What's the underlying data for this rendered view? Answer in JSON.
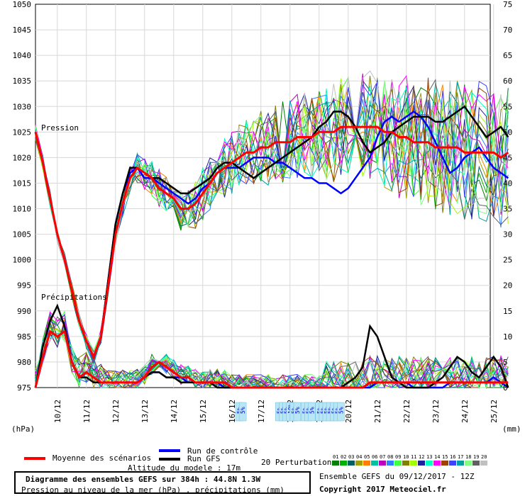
{
  "chart_data": {
    "type": "line",
    "left_axis": {
      "ticks": [
        975,
        980,
        985,
        990,
        995,
        1000,
        1005,
        1010,
        1015,
        1020,
        1025,
        1030,
        1035,
        1040,
        1045,
        1050
      ],
      "unit": "(hPa)",
      "range": [
        975,
        1050
      ]
    },
    "right_axis": {
      "ticks": [
        0,
        5,
        10,
        15,
        20,
        25,
        30,
        35,
        40,
        45,
        50,
        55,
        60,
        65,
        70,
        75
      ],
      "unit": "(mm)",
      "range": [
        0,
        75
      ]
    },
    "x_ticks": [
      "10/12",
      "11/12",
      "12/12",
      "13/12",
      "14/12",
      "15/12",
      "16/12",
      "17/12",
      "18/12",
      "19/12",
      "20/12",
      "21/12",
      "22/12",
      "23/12",
      "24/12",
      "25/12"
    ],
    "panel_labels": {
      "pressure": "Pression",
      "precip": "Précipitations"
    },
    "snow_marks": [
      {
        "day_offset": 14.0,
        "label": "5%"
      },
      {
        "day_offset": 14.25,
        "label": "5%"
      },
      {
        "day_offset": 16.75,
        "label": "5%"
      },
      {
        "day_offset": 17.0,
        "label": "5%"
      },
      {
        "day_offset": 17.25,
        "label": "5%"
      },
      {
        "day_offset": 17.5,
        "label": "10%"
      },
      {
        "day_offset": 17.75,
        "label": "5%"
      },
      {
        "day_offset": 18.0,
        "label": "5%"
      },
      {
        "day_offset": 18.5,
        "label": "5%"
      },
      {
        "day_offset": 18.75,
        "label": "5%"
      },
      {
        "day_offset": 19.0,
        "label": "5%"
      },
      {
        "day_offset": 19.5,
        "label": "5%"
      },
      {
        "day_offset": 19.75,
        "label": "5%"
      },
      {
        "day_offset": 20.0,
        "label": "5%"
      },
      {
        "day_offset": 20.25,
        "label": "5%"
      },
      {
        "day_offset": 20.5,
        "label": "5%"
      },
      {
        "day_offset": 20.75,
        "label": "5%"
      },
      {
        "day_offset": 21.0,
        "label": "5%"
      }
    ],
    "series": [
      {
        "name": "Moyenne des scénarios",
        "color": "#ff0000",
        "pressure": [
          1025,
          1019,
          1012,
          1005,
          1000,
          994,
          988,
          984,
          981,
          985,
          995,
          1005,
          1011,
          1016,
          1018,
          1017,
          1016,
          1014,
          1013,
          1012,
          1010,
          1010,
          1011,
          1013,
          1015,
          1017,
          1018,
          1019,
          1020,
          1021,
          1021,
          1022,
          1022,
          1023,
          1023,
          1023,
          1024,
          1024,
          1024,
          1025,
          1025,
          1025,
          1026,
          1026,
          1026,
          1026,
          1026,
          1026,
          1025,
          1025,
          1024,
          1024,
          1023,
          1023,
          1023,
          1022,
          1022,
          1022,
          1022,
          1021,
          1021,
          1021,
          1021,
          1021,
          1020,
          1021
        ],
        "precip": [
          0,
          6,
          11,
          10,
          11,
          5,
          2,
          3,
          2,
          1,
          1,
          1,
          1,
          1,
          1,
          2,
          4,
          5,
          4,
          3,
          2,
          2,
          1,
          1,
          1,
          1,
          1,
          0,
          0,
          0,
          0,
          0,
          0,
          0,
          0,
          0,
          0,
          0,
          0,
          0,
          0,
          0,
          0,
          0,
          0,
          0,
          1,
          1,
          1,
          1,
          1,
          1,
          1,
          1,
          1,
          1,
          1,
          1,
          1,
          1,
          1,
          1,
          1,
          1,
          1,
          1
        ]
      },
      {
        "name": "Run de contrôle",
        "color": "#0000ff",
        "pressure": [
          1025,
          1019,
          1012,
          1005,
          1000,
          994,
          988,
          984,
          981,
          985,
          996,
          1007,
          1013,
          1017,
          1018,
          1016,
          1016,
          1015,
          1014,
          1013,
          1012,
          1011,
          1012,
          1014,
          1015,
          1017,
          1018,
          1018,
          1018,
          1019,
          1020,
          1020,
          1020,
          1019,
          1019,
          1018,
          1017,
          1016,
          1016,
          1015,
          1015,
          1014,
          1013,
          1014,
          1016,
          1018,
          1020,
          1024,
          1027,
          1028,
          1027,
          1028,
          1029,
          1028,
          1026,
          1023,
          1020,
          1017,
          1018,
          1020,
          1021,
          1022,
          1020,
          1018,
          1017,
          1016
        ],
        "precip": [
          0,
          6,
          11,
          10,
          11,
          5,
          2,
          3,
          2,
          1,
          1,
          1,
          1,
          1,
          1,
          2,
          3,
          3,
          2,
          2,
          2,
          1,
          1,
          1,
          1,
          1,
          0,
          0,
          0,
          0,
          0,
          0,
          0,
          0,
          0,
          0,
          0,
          0,
          0,
          0,
          0,
          0,
          0,
          0,
          0,
          0,
          0,
          1,
          1,
          1,
          1,
          1,
          0,
          0,
          0,
          0,
          0,
          1,
          1,
          1,
          1,
          1,
          1,
          2,
          1,
          0
        ]
      },
      {
        "name": "Run GFS",
        "color": "#000000",
        "pressure": [
          1025,
          1019,
          1012,
          1005,
          1000,
          994,
          988,
          984,
          981,
          985,
          996,
          1007,
          1013,
          1018,
          1018,
          1017,
          1016,
          1016,
          1015,
          1014,
          1013,
          1013,
          1014,
          1015,
          1016,
          1018,
          1019,
          1019,
          1018,
          1017,
          1016,
          1017,
          1018,
          1019,
          1020,
          1021,
          1022,
          1023,
          1024,
          1026,
          1027,
          1029,
          1029,
          1028,
          1026,
          1023,
          1021,
          1022,
          1023,
          1025,
          1026,
          1027,
          1028,
          1028,
          1028,
          1027,
          1027,
          1028,
          1029,
          1030,
          1028,
          1026,
          1024,
          1025,
          1026,
          1024
        ],
        "precip": [
          0,
          8,
          13,
          16,
          12,
          5,
          2,
          2,
          1,
          1,
          1,
          1,
          1,
          1,
          1,
          2,
          3,
          3,
          2,
          2,
          1,
          1,
          1,
          1,
          1,
          0,
          0,
          0,
          0,
          0,
          0,
          0,
          0,
          0,
          0,
          0,
          0,
          0,
          0,
          0,
          0,
          0,
          0,
          1,
          2,
          4,
          12,
          10,
          6,
          2,
          1,
          0,
          0,
          0,
          0,
          1,
          2,
          4,
          6,
          5,
          3,
          2,
          4,
          6,
          4,
          0
        ]
      }
    ],
    "perturbation_colors": [
      "#008000",
      "#00b000",
      "#006060",
      "#a0a000",
      "#ff8000",
      "#00c0a0",
      "#c000c0",
      "#3080ff",
      "#40ff40",
      "#808000",
      "#a0ff00",
      "#2020a0",
      "#00ffc0",
      "#ff00ff",
      "#a04000",
      "#4040ff",
      "#00a0a0",
      "#80ff80",
      "#606060",
      "#c0c0c0"
    ]
  },
  "legend": {
    "mean_label": "Moyenne des scénarios",
    "control_label": "Run de contrôle",
    "gfs_label": "Run GFS",
    "perturbations_label": "20 Perturbations",
    "perturbation_numbers": [
      "01",
      "02",
      "03",
      "04",
      "05",
      "06",
      "07",
      "08",
      "09",
      "10",
      "11",
      "12",
      "13",
      "14",
      "15",
      "16",
      "17",
      "18",
      "19",
      "20"
    ],
    "altitude": "Altitude du modele : 17m"
  },
  "info": {
    "title": "Diagramme des ensembles GEFS sur 384h : 44.8N 1.3W",
    "subtitle": "Pression au niveau de la mer (hPa) , précipitations (mm)",
    "run": "Ensemble GEFS du 09/12/2017 - 12Z",
    "copyright": "Copyright 2017 Meteociel.fr"
  }
}
